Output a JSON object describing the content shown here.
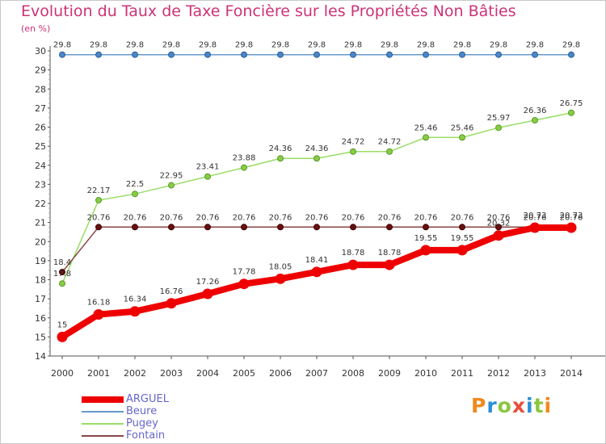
{
  "title": "Evolution du Taux de Taxe Foncière sur les Propriétés Non Bâties",
  "unit_label": "(en %)",
  "logo": {
    "text": "Proxiti",
    "colors": [
      "#f08a1c",
      "#2a8fd6",
      "#8cc63f",
      "#e94e3c",
      "#2a8fd6",
      "#8cc63f",
      "#f08a1c"
    ]
  },
  "chart_data": {
    "type": "line",
    "title": "Evolution du Taux de Taxe Foncière sur les Propriétés Non Bâties",
    "ylabel": "(en %)",
    "xlabel": "",
    "x": [
      "2000",
      "2001",
      "2002",
      "2003",
      "2004",
      "2005",
      "2006",
      "2007",
      "2008",
      "2009",
      "2010",
      "2011",
      "2012",
      "2013",
      "2014"
    ],
    "ylim": [
      14,
      30
    ],
    "yticks": [
      "14",
      "15",
      "16",
      "17",
      "18",
      "19",
      "20",
      "21",
      "22",
      "23",
      "24",
      "25",
      "26",
      "27",
      "28",
      "29",
      "30"
    ],
    "grid": false,
    "legend_position": "bottom-left",
    "series": [
      {
        "name": "ARGUEL",
        "color": "#ee0000",
        "values": [
          15,
          16.18,
          16.34,
          16.76,
          17.26,
          17.78,
          18.05,
          18.41,
          18.78,
          18.78,
          19.55,
          19.55,
          20.32,
          20.73,
          20.73
        ],
        "labels": [
          "15",
          "16.18",
          "16.34",
          "16.76",
          "17.26",
          "17.78",
          "18.05",
          "18.41",
          "18.78",
          "18.78",
          "19.55",
          "19.55",
          "20.32",
          "20.73",
          "20.73"
        ]
      },
      {
        "name": "Beure",
        "color": "#6699cc",
        "values": [
          29.8,
          29.8,
          29.8,
          29.8,
          29.8,
          29.8,
          29.8,
          29.8,
          29.8,
          29.8,
          29.8,
          29.8,
          29.8,
          29.8,
          29.8
        ],
        "labels": [
          "29.8",
          "29.8",
          "29.8",
          "29.8",
          "29.8",
          "29.8",
          "29.8",
          "29.8",
          "29.8",
          "29.8",
          "29.8",
          "29.8",
          "29.8",
          "29.8",
          "29.8"
        ]
      },
      {
        "name": "Pugey",
        "color": "#99dd66",
        "values": [
          17.8,
          22.17,
          22.5,
          22.95,
          23.41,
          23.88,
          24.36,
          24.36,
          24.72,
          24.72,
          25.46,
          25.46,
          25.97,
          26.36,
          26.75
        ],
        "labels": [
          "17.8",
          "22.17",
          "22.5",
          "22.95",
          "23.41",
          "23.88",
          "24.36",
          "24.36",
          "24.72",
          "24.72",
          "25.46",
          "25.46",
          "25.97",
          "26.36",
          "26.75"
        ]
      },
      {
        "name": "Fontain",
        "color": "#884444",
        "values": [
          18.4,
          20.76,
          20.76,
          20.76,
          20.76,
          20.76,
          20.76,
          20.76,
          20.76,
          20.76,
          20.76,
          20.76,
          20.76,
          20.76,
          20.76
        ],
        "labels": [
          "18.4",
          "20.76",
          "20.76",
          "20.76",
          "20.76",
          "20.76",
          "20.76",
          "20.76",
          "20.76",
          "20.76",
          "20.76",
          "20.76",
          "20.76",
          "20.76",
          "20.76"
        ]
      }
    ]
  }
}
